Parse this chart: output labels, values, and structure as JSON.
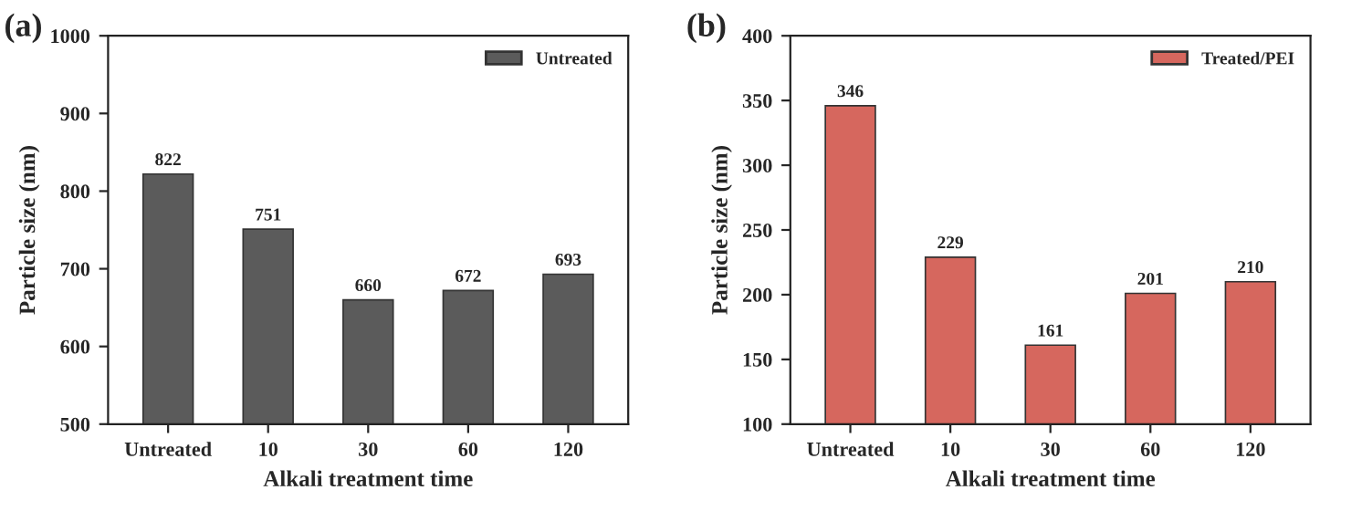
{
  "chart_data": [
    {
      "type": "bar",
      "title": "(a)",
      "xlabel": "Alkali treatment time",
      "ylabel": "Particle size (nm)",
      "categories": [
        "Untreated",
        "10",
        "30",
        "60",
        "120"
      ],
      "series": [
        {
          "name": "Untreated",
          "color": "#5b5b5b",
          "values": [
            822,
            751,
            660,
            672,
            693
          ]
        }
      ],
      "ylim": [
        500,
        1000
      ],
      "yticks": [
        500,
        600,
        700,
        800,
        900,
        1000
      ],
      "data_labels": true,
      "legend": "top right",
      "grid": false
    },
    {
      "type": "bar",
      "title": "(b)",
      "xlabel": "Alkali treatment time",
      "ylabel": "Particle size (nm)",
      "categories": [
        "Untreated",
        "10",
        "30",
        "60",
        "120"
      ],
      "series": [
        {
          "name": "Treated/PEI",
          "color": "#d6675e",
          "values": [
            346,
            229,
            161,
            201,
            210
          ]
        }
      ],
      "ylim": [
        100,
        400
      ],
      "yticks": [
        100,
        150,
        200,
        250,
        300,
        350,
        400
      ],
      "data_labels": true,
      "legend": "top right",
      "grid": false
    }
  ]
}
